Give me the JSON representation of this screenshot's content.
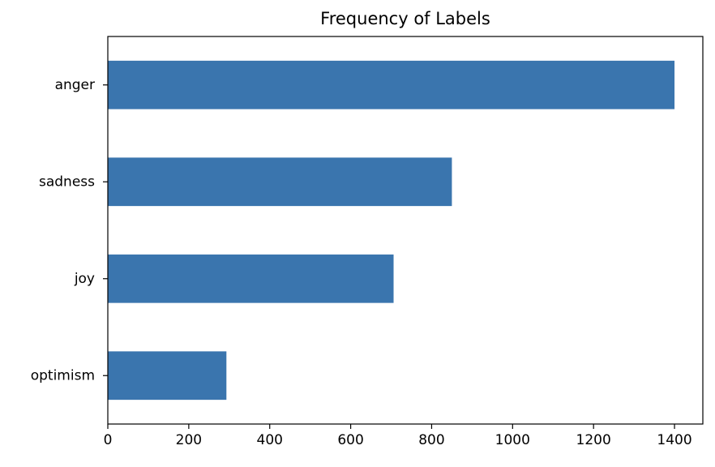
{
  "chart_data": {
    "type": "barh",
    "title": "Frequency of Labels",
    "categories": [
      "anger",
      "sadness",
      "joy",
      "optimism"
    ],
    "values": [
      1400,
      850,
      706,
      293
    ],
    "color": "#3a75ae",
    "xlim": [
      0,
      1470
    ],
    "xticks": [
      0,
      200,
      400,
      600,
      800,
      1000,
      1200,
      1400
    ],
    "grid": false
  }
}
